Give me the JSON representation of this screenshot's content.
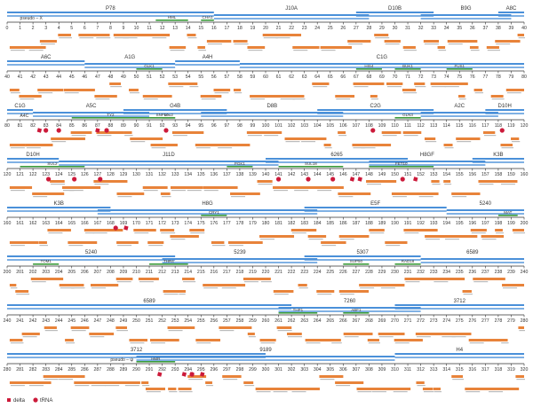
{
  "legend": {
    "delta_label": "delta",
    "trna_label": "tRNA"
  },
  "colors": {
    "contig": "#4a90d9",
    "gene": "#e8833a",
    "element": "#cc1a3a",
    "feature": "#3a9a3a",
    "axis": "#333333"
  },
  "rows": [
    {
      "start": 0,
      "end": 40,
      "cosmids": [
        {
          "label": "P78",
          "from": 0,
          "to": 16
        },
        {
          "label": "J10A",
          "from": 16,
          "to": 28
        },
        {
          "label": "D10B",
          "from": 27,
          "to": 33
        },
        {
          "label": "B9G",
          "from": 32,
          "to": 39
        },
        {
          "label": "A8C",
          "from": 38,
          "to": 40
        }
      ],
      "features": [
        {
          "label": "HML",
          "from": 11.5,
          "to": 14
        },
        {
          "label": "CHA1",
          "from": 15,
          "to": 16
        }
      ],
      "elements": [],
      "notes": [
        {
          "text": "pseudo – X",
          "at": 1
        }
      ]
    },
    {
      "start": 40,
      "end": 80,
      "cosmids": [
        {
          "label": "A6C",
          "from": 40,
          "to": 46
        },
        {
          "label": "A1G",
          "from": 46,
          "to": 53
        },
        {
          "label": "A4H",
          "from": 53,
          "to": 58
        },
        {
          "label": "C1G",
          "from": 58,
          "to": 80
        }
      ],
      "features": [
        {
          "label": "GLK1",
          "from": 50,
          "to": 52
        },
        {
          "label": "HIS4",
          "from": 67,
          "to": 69
        },
        {
          "label": "BUK1",
          "from": 70,
          "to": 72
        },
        {
          "label": "FUS1",
          "from": 74,
          "to": 76
        }
      ],
      "elements": [],
      "notes": []
    },
    {
      "start": 80,
      "end": 120,
      "cosmids": [
        {
          "label": "C1G",
          "from": 80,
          "to": 82
        },
        {
          "label": "A5C",
          "from": 82,
          "to": 91
        },
        {
          "label": "G4B",
          "from": 89,
          "to": 97
        },
        {
          "label": "D8B",
          "from": 95,
          "to": 106
        },
        {
          "label": "C2G",
          "from": 104,
          "to": 113
        },
        {
          "label": "A2C",
          "from": 112,
          "to": 118
        },
        {
          "label": "D10H",
          "from": 117,
          "to": 120
        }
      ],
      "features": [
        {
          "label": "TY2",
          "from": 85,
          "to": 91
        },
        {
          "label": "SNF50",
          "from": 91,
          "to": 93
        },
        {
          "label": "Leu2",
          "from": 92,
          "to": 93
        },
        {
          "label": "GLN3",
          "from": 110,
          "to": 112
        }
      ],
      "elements": [
        {
          "type": "delta",
          "at": 82.5
        },
        {
          "type": "trna",
          "at": 83
        },
        {
          "type": "trna",
          "at": 84
        },
        {
          "type": "delta",
          "at": 87
        },
        {
          "type": "trna",
          "at": 87.7
        },
        {
          "type": "trna",
          "at": 92.3
        },
        {
          "type": "trna",
          "at": 108.3
        },
        {
          "type": "trna",
          "at": 118.3
        }
      ],
      "notes": [
        {
          "text": "A4C",
          "at": 81
        }
      ]
    },
    {
      "start": 120,
      "end": 160,
      "cosmids": [
        {
          "label": "D10H",
          "from": 120,
          "to": 124
        },
        {
          "label": "J11D",
          "from": 124,
          "to": 141
        },
        {
          "label": "6265",
          "from": 140,
          "to": 151
        },
        {
          "label": "H8GF",
          "from": 148,
          "to": 157
        },
        {
          "label": "K3B",
          "from": 156,
          "to": 160
        }
      ],
      "features": [
        {
          "label": "SUL2",
          "from": 121,
          "to": 126
        },
        {
          "label": "PGK1",
          "from": 137,
          "to": 139
        },
        {
          "label": "SUL18",
          "from": 141,
          "to": 146
        },
        {
          "label": "FET10",
          "from": 148,
          "to": 153
        }
      ],
      "elements": [
        {
          "type": "trna",
          "at": 123.2
        },
        {
          "type": "trna",
          "at": 125.2
        },
        {
          "type": "trna",
          "at": 127.2
        },
        {
          "type": "trna",
          "at": 141
        },
        {
          "type": "trna",
          "at": 143.3
        },
        {
          "type": "trna",
          "at": 145.2
        },
        {
          "type": "delta",
          "at": 146.7
        },
        {
          "type": "delta",
          "at": 147.3
        },
        {
          "type": "trna",
          "at": 150.6
        },
        {
          "type": "delta",
          "at": 151.6
        }
      ],
      "notes": []
    },
    {
      "start": 160,
      "end": 200,
      "cosmids": [
        {
          "label": "K3B",
          "from": 160,
          "to": 168
        },
        {
          "label": "H8G",
          "from": 167,
          "to": 184
        },
        {
          "label": "E5F",
          "from": 183,
          "to": 194
        },
        {
          "label": "5240",
          "from": 194,
          "to": 200
        }
      ],
      "features": [
        {
          "label": "CRY1",
          "from": 175,
          "to": 177
        },
        {
          "label": "MAT",
          "from": 198,
          "to": 199.5
        }
      ],
      "elements": [
        {
          "type": "trna",
          "at": 168.4
        },
        {
          "type": "delta",
          "at": 169.2
        }
      ],
      "notes": []
    },
    {
      "start": 200,
      "end": 240,
      "cosmids": [
        {
          "label": "5240",
          "from": 200,
          "to": 213
        },
        {
          "label": "5239",
          "from": 212,
          "to": 224
        },
        {
          "label": "5307",
          "from": 223,
          "to": 232
        },
        {
          "label": "6589",
          "from": 232,
          "to": 240
        }
      ],
      "features": [
        {
          "label": "TOM1",
          "from": 202,
          "to": 204
        },
        {
          "label": "THR4",
          "from": 211,
          "to": 214
        },
        {
          "label": "SUP50",
          "from": 226,
          "to": 228
        },
        {
          "label": "RAD18",
          "from": 230,
          "to": 232
        }
      ],
      "elements": [],
      "notes": []
    },
    {
      "start": 240,
      "end": 280,
      "cosmids": [
        {
          "label": "6589",
          "from": 240,
          "to": 262
        },
        {
          "label": "7260",
          "from": 261,
          "to": 272
        },
        {
          "label": "3712",
          "from": 270,
          "to": 280
        }
      ],
      "features": [
        {
          "label": "THP1",
          "from": 261,
          "to": 264
        },
        {
          "label": "ABF1",
          "from": 266,
          "to": 268
        }
      ],
      "elements": [],
      "notes": []
    },
    {
      "start": 280,
      "end": 320,
      "cosmids": [
        {
          "label": "3712",
          "from": 280,
          "to": 300
        },
        {
          "label": "9189",
          "from": 290,
          "to": 310
        },
        {
          "label": "H4",
          "from": 310,
          "to": 320
        }
      ],
      "features": [
        {
          "label": "HMR",
          "from": 290,
          "to": 293
        }
      ],
      "elements": [
        {
          "type": "delta",
          "at": 291.8
        },
        {
          "type": "delta",
          "at": 293.7
        },
        {
          "type": "trna",
          "at": 294.3
        },
        {
          "type": "delta",
          "at": 294.3
        },
        {
          "type": "delta",
          "at": 295.1
        }
      ],
      "notes": [
        {
          "text": "pseudo – ψ",
          "at": 288
        }
      ]
    }
  ]
}
